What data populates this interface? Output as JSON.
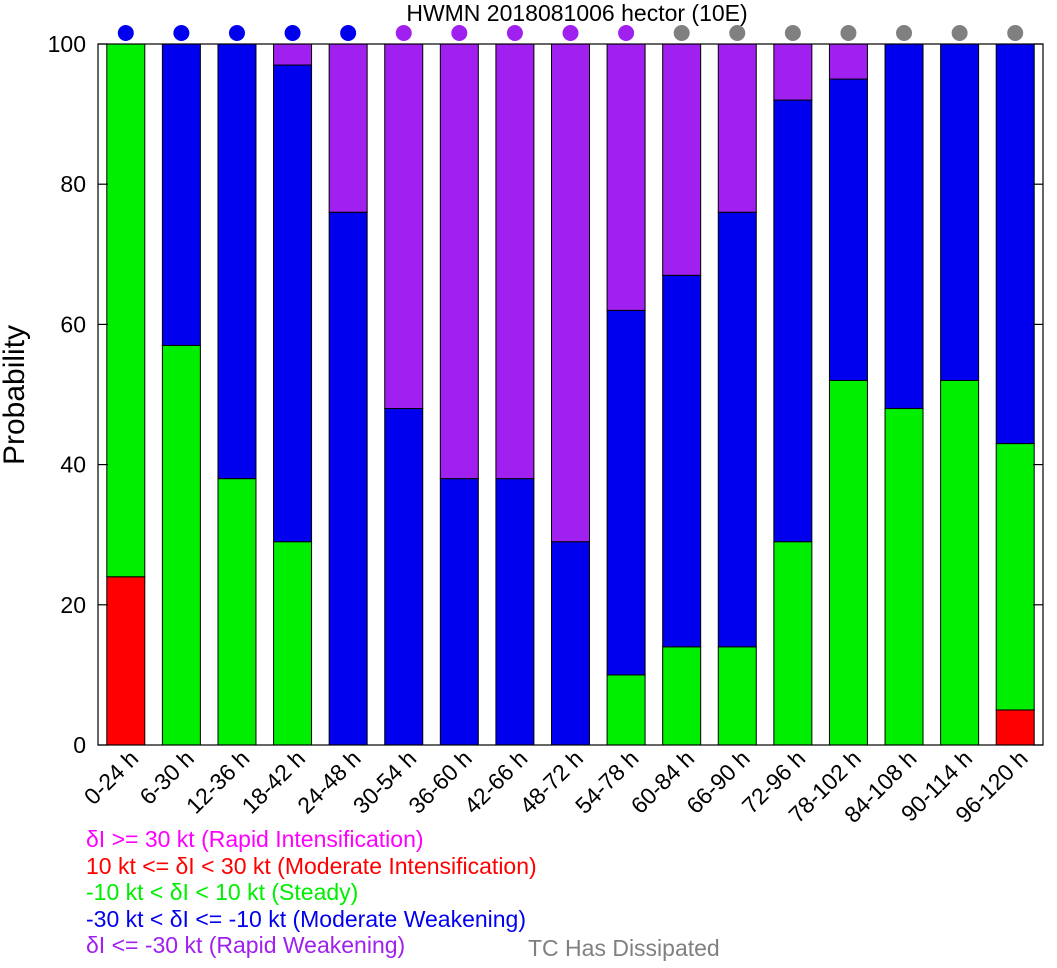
{
  "chart_data": {
    "type": "bar",
    "stacked": true,
    "title": "HWMN 2018081006 hector (10E)",
    "xlabel": "",
    "ylabel": "Probability",
    "ylim": [
      0,
      100
    ],
    "yticks": [
      0,
      20,
      40,
      60,
      80,
      100
    ],
    "grid": false,
    "categories": [
      "0-24 h",
      "6-30 h",
      "12-36 h",
      "18-42 h",
      "24-48 h",
      "30-54 h",
      "36-60 h",
      "42-66 h",
      "48-72 h",
      "54-78 h",
      "60-84 h",
      "66-90 h",
      "72-96 h",
      "78-102 h",
      "84-108 h",
      "90-114 h",
      "96-120 h"
    ],
    "series": [
      {
        "name": "δI >= 30 kt (Rapid Intensification)",
        "color": "#ff00ff",
        "values": [
          0,
          0,
          0,
          0,
          0,
          0,
          0,
          0,
          0,
          0,
          0,
          0,
          0,
          0,
          0,
          0,
          0
        ]
      },
      {
        "name": "10 kt <= δI < 30 kt (Moderate Intensification)",
        "color": "#ff0000",
        "values": [
          24,
          0,
          0,
          0,
          0,
          0,
          0,
          0,
          0,
          0,
          0,
          0,
          0,
          0,
          0,
          0,
          5
        ]
      },
      {
        "name": "-10 kt < δI < 10 kt (Steady)",
        "color": "#00ee00",
        "values": [
          76,
          57,
          38,
          29,
          0,
          0,
          0,
          0,
          0,
          10,
          14,
          14,
          29,
          52,
          48,
          52,
          38
        ]
      },
      {
        "name": "-30 kt < δI <= -10 kt (Moderate Weakening)",
        "color": "#0000ee",
        "values": [
          0,
          43,
          62,
          68,
          76,
          48,
          38,
          38,
          29,
          52,
          53,
          62,
          63,
          43,
          52,
          48,
          57
        ]
      },
      {
        "name": "δI <= -30 kt (Rapid Weakening)",
        "color": "#a020f0",
        "values": [
          0,
          0,
          0,
          3,
          24,
          52,
          62,
          62,
          71,
          38,
          33,
          24,
          8,
          5,
          0,
          0,
          0
        ]
      }
    ],
    "top_markers": [
      "moderate-weakening",
      "moderate-weakening",
      "moderate-weakening",
      "moderate-weakening",
      "moderate-weakening",
      "rapid-weakening",
      "rapid-weakening",
      "rapid-weakening",
      "rapid-weakening",
      "rapid-weakening",
      "dissipated",
      "dissipated",
      "dissipated",
      "dissipated",
      "dissipated",
      "dissipated",
      "dissipated"
    ],
    "marker_colors": {
      "moderate-weakening": "#0000ee",
      "rapid-weakening": "#a020f0",
      "dissipated": "#808080"
    },
    "dissipated_label": "TC Has Dissipated",
    "dissipated_color": "#808080",
    "legend_placement": "bottom-left"
  }
}
